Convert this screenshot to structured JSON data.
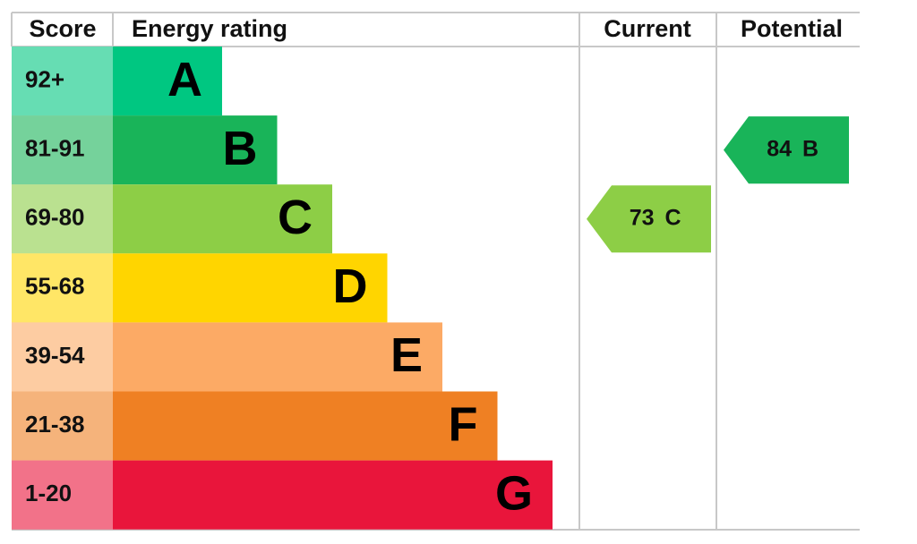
{
  "header": {
    "score": "Score",
    "rating": "Energy rating",
    "current": "Current",
    "potential": "Potential"
  },
  "rows": [
    {
      "score": "92+",
      "letter": "A",
      "color": "#00c781"
    },
    {
      "score": "81-91",
      "letter": "B",
      "color": "#19b459"
    },
    {
      "score": "69-80",
      "letter": "C",
      "color": "#8dce46"
    },
    {
      "score": "55-68",
      "letter": "D",
      "color": "#ffd500"
    },
    {
      "score": "39-54",
      "letter": "E",
      "color": "#fcaa65"
    },
    {
      "score": "21-38",
      "letter": "F",
      "color": "#ef8023"
    },
    {
      "score": "1-20",
      "letter": "G",
      "color": "#e9153b"
    }
  ],
  "current": {
    "score": 73,
    "rating": "C"
  },
  "potential": {
    "score": 84,
    "rating": "B"
  }
}
